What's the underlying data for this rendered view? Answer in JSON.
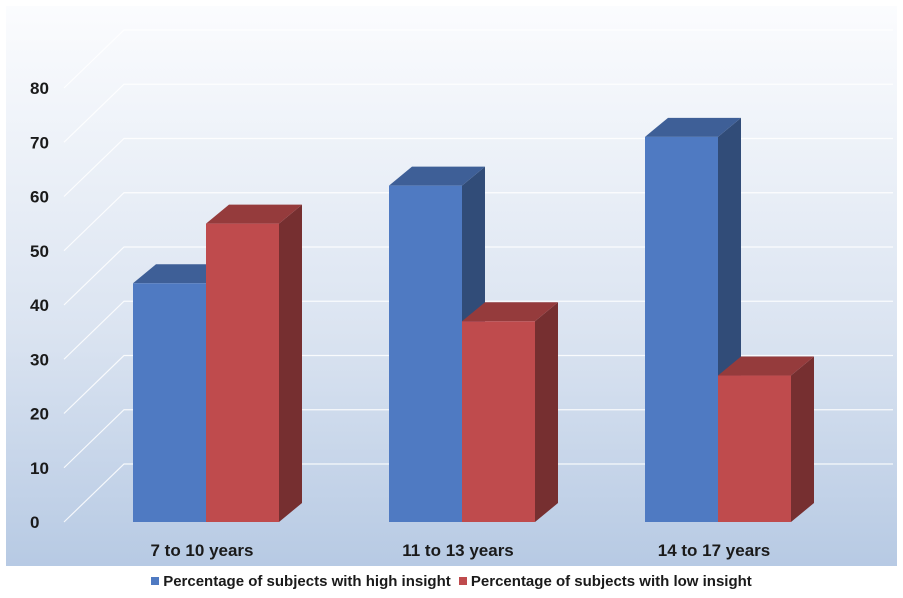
{
  "chart_data": {
    "type": "bar",
    "categories": [
      "7 to 10 years",
      "11 to 13 years",
      "14 to 17 years"
    ],
    "series": [
      {
        "name": "Percentage of subjects with high insight",
        "values": [
          44,
          62,
          71
        ],
        "color": "#4f7ac2"
      },
      {
        "name": "Percentage of subjects with low insight",
        "values": [
          55,
          37,
          27
        ],
        "color": "#bf4b4d"
      }
    ],
    "ylim": [
      0,
      80
    ],
    "yticks": [
      0,
      10,
      20,
      30,
      40,
      50,
      60,
      70,
      80
    ],
    "grid": true,
    "style": "3d-clustered",
    "legend_position": "bottom",
    "background": "blue-gradient"
  }
}
